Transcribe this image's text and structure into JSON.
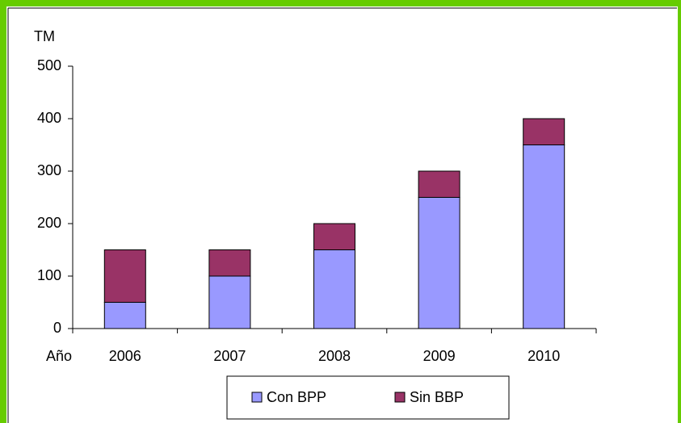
{
  "chart_data": {
    "type": "stacked_bar",
    "y_label": "TM",
    "x_label": "Año",
    "categories": [
      "2006",
      "2007",
      "2008",
      "2009",
      "2010"
    ],
    "series": [
      {
        "name": "Con BPP",
        "color": "#9999ff",
        "values": [
          50,
          100,
          150,
          250,
          350
        ]
      },
      {
        "name": "Sin BBP",
        "color": "#993366",
        "values": [
          100,
          50,
          50,
          50,
          50
        ]
      }
    ],
    "ylim": [
      0,
      500
    ],
    "yticks": [
      0,
      100,
      200,
      300,
      400,
      500
    ],
    "grid": false,
    "legend": "bottom"
  }
}
